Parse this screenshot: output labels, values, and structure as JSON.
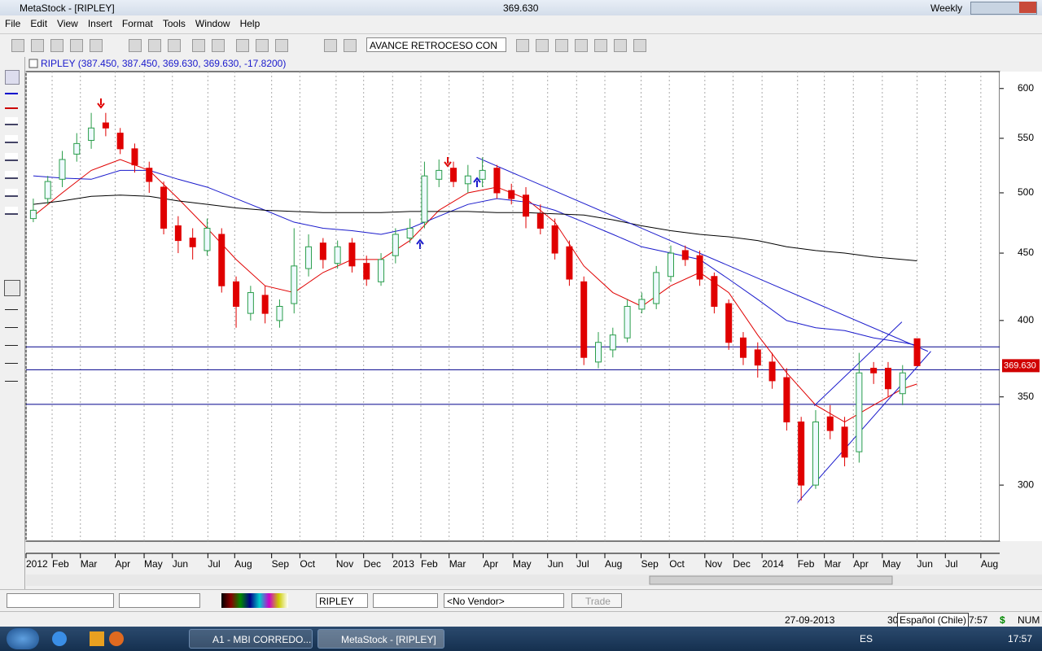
{
  "window": {
    "title": "MetaStock - [RIPLEY]",
    "value": "369.630",
    "period": "Weekly"
  },
  "menu": [
    "File",
    "Edit",
    "View",
    "Insert",
    "Format",
    "Tools",
    "Window",
    "Help"
  ],
  "toolbar": {
    "study": "AVANCE RETROCESO CON"
  },
  "chart_data": {
    "type": "candlestick",
    "title": "RIPLEY (387.450, 387.450, 369.630, 369.630, -17.8200)",
    "x": [
      1,
      3,
      5,
      7,
      9,
      11,
      13,
      15,
      17,
      19,
      21,
      23,
      25,
      27,
      29,
      31,
      33,
      35,
      37,
      39,
      41,
      43,
      45,
      47,
      49,
      51,
      53,
      55,
      57,
      59,
      61,
      63,
      65,
      67,
      69,
      71,
      73,
      75,
      77,
      79,
      81,
      83,
      85,
      87,
      89,
      91,
      93,
      95,
      97,
      99,
      101,
      103,
      105,
      107,
      109,
      111,
      113,
      115,
      117,
      119,
      121,
      123
    ],
    "open": [
      478,
      495,
      512,
      535,
      548,
      565,
      555,
      540,
      522,
      505,
      472,
      462,
      452,
      465,
      428,
      405,
      418,
      400,
      412,
      438,
      458,
      442,
      458,
      442,
      428,
      448,
      462,
      475,
      512,
      522,
      508,
      512,
      522,
      502,
      498,
      482,
      472,
      455,
      428,
      372,
      380,
      388,
      408,
      412,
      432,
      452,
      448,
      432,
      412,
      388,
      380,
      372,
      362,
      335,
      300,
      338,
      332,
      318,
      368,
      368,
      352,
      387.45
    ],
    "high": [
      495,
      515,
      538,
      555,
      575,
      575,
      560,
      545,
      528,
      510,
      480,
      470,
      478,
      470,
      432,
      425,
      425,
      415,
      470,
      465,
      462,
      460,
      462,
      448,
      450,
      470,
      478,
      528,
      530,
      528,
      525,
      532,
      525,
      508,
      505,
      490,
      478,
      460,
      432,
      392,
      395,
      415,
      420,
      440,
      456,
      456,
      452,
      435,
      415,
      392,
      385,
      378,
      368,
      338,
      342,
      345,
      338,
      378,
      372,
      372,
      370,
      387.45
    ],
    "low": [
      475,
      490,
      505,
      528,
      540,
      552,
      535,
      518,
      500,
      465,
      450,
      445,
      448,
      420,
      395,
      400,
      398,
      395,
      405,
      432,
      438,
      438,
      435,
      425,
      425,
      442,
      458,
      470,
      505,
      505,
      500,
      505,
      495,
      490,
      470,
      465,
      445,
      425,
      370,
      368,
      375,
      385,
      405,
      408,
      428,
      440,
      425,
      405,
      380,
      370,
      362,
      355,
      330,
      292,
      298,
      325,
      310,
      312,
      358,
      350,
      345,
      369.63
    ],
    "close": [
      485,
      510,
      530,
      545,
      560,
      560,
      540,
      525,
      510,
      470,
      460,
      455,
      470,
      425,
      410,
      420,
      405,
      410,
      440,
      455,
      445,
      455,
      440,
      430,
      445,
      465,
      470,
      515,
      520,
      510,
      515,
      520,
      500,
      495,
      480,
      470,
      450,
      430,
      375,
      385,
      390,
      410,
      415,
      435,
      450,
      445,
      430,
      410,
      385,
      375,
      370,
      360,
      335,
      300,
      335,
      330,
      315,
      365,
      365,
      355,
      365,
      369.63
    ],
    "up_color": "#2a9d4a",
    "down_color": "#e00000",
    "series": [
      {
        "color": "#e00000",
        "x": [
          1,
          5,
          9,
          13,
          17,
          21,
          25,
          29,
          33,
          37,
          41,
          45,
          49,
          53,
          57,
          61,
          65,
          69,
          73,
          77,
          81,
          85,
          89,
          93,
          97,
          101,
          105,
          109,
          113,
          117,
          121,
          123
        ],
        "values": [
          480,
          500,
          520,
          530,
          520,
          495,
          470,
          445,
          425,
          420,
          435,
          445,
          445,
          460,
          485,
          500,
          505,
          495,
          475,
          440,
          420,
          410,
          425,
          435,
          420,
          390,
          365,
          345,
          335,
          345,
          355,
          358
        ]
      },
      {
        "color": "#1a1acc",
        "x": [
          1,
          5,
          9,
          13,
          17,
          21,
          25,
          29,
          33,
          37,
          41,
          45,
          49,
          53,
          57,
          61,
          65,
          69,
          73,
          77,
          81,
          85,
          89,
          93,
          97,
          101,
          105,
          109,
          113,
          117,
          121,
          123
        ],
        "values": [
          515,
          513,
          512,
          520,
          520,
          512,
          505,
          495,
          485,
          475,
          470,
          468,
          465,
          470,
          480,
          490,
          495,
          492,
          485,
          475,
          465,
          455,
          450,
          445,
          430,
          415,
          400,
          395,
          393,
          388,
          385,
          383
        ]
      },
      {
        "color": "#000000",
        "x": [
          1,
          5,
          9,
          13,
          17,
          21,
          25,
          29,
          33,
          37,
          41,
          45,
          49,
          53,
          57,
          61,
          65,
          69,
          73,
          77,
          81,
          85,
          89,
          93,
          97,
          101,
          105,
          109,
          113,
          117,
          121,
          123
        ],
        "values": [
          490,
          493,
          497,
          498,
          497,
          493,
          490,
          487,
          485,
          484,
          483,
          483,
          483,
          484,
          484,
          484,
          483,
          483,
          482,
          481,
          477,
          472,
          468,
          465,
          463,
          460,
          455,
          452,
          450,
          447,
          445,
          444
        ]
      }
    ],
    "hlines": [
      382,
      367,
      345.5
    ],
    "hline_color": "#00008b",
    "trendlines": [
      {
        "x": [
          62.2,
          124.5
        ],
        "values": [
          532,
          379
        ]
      },
      {
        "x": [
          106.5,
          124.9
        ],
        "values": [
          291,
          379
        ]
      },
      {
        "x": [
          108.8,
          120.9
        ],
        "values": [
          344.6,
          399
        ]
      }
    ],
    "trend_color": "#1a1acc",
    "last_price": {
      "value": 369.63,
      "label": "369.630"
    },
    "log_scale": true,
    "grid": true,
    "xlim": [
      0,
      134.4
    ],
    "ylim": [
      272,
      618
    ],
    "yticks": [
      300,
      350,
      400,
      450,
      500,
      550,
      600
    ],
    "xticks": [
      {
        "value": 0,
        "label": "2012"
      },
      {
        "value": 3.6,
        "label": "Feb"
      },
      {
        "value": 7.5,
        "label": "Mar"
      },
      {
        "value": 12.3,
        "label": "Apr"
      },
      {
        "value": 16.3,
        "label": "May"
      },
      {
        "value": 20.2,
        "label": "Jun"
      },
      {
        "value": 25.1,
        "label": "Jul"
      },
      {
        "value": 28.8,
        "label": "Aug"
      },
      {
        "value": 33.9,
        "label": "Sep"
      },
      {
        "value": 37.8,
        "label": "Oct"
      },
      {
        "value": 42.8,
        "label": "Nov"
      },
      {
        "value": 46.6,
        "label": "Dec"
      },
      {
        "value": 50.6,
        "label": "2013"
      },
      {
        "value": 54.5,
        "label": "Feb"
      },
      {
        "value": 58.4,
        "label": "Mar"
      },
      {
        "value": 63.1,
        "label": "Apr"
      },
      {
        "value": 67.2,
        "label": "May"
      },
      {
        "value": 72,
        "label": "Jun"
      },
      {
        "value": 76,
        "label": "Jul"
      },
      {
        "value": 79.9,
        "label": "Aug"
      },
      {
        "value": 84.9,
        "label": "Sep"
      },
      {
        "value": 88.8,
        "label": "Oct"
      },
      {
        "value": 93.7,
        "label": "Nov"
      },
      {
        "value": 97.6,
        "label": "Dec"
      },
      {
        "value": 101.6,
        "label": "2014"
      },
      {
        "value": 106.5,
        "label": "Feb"
      },
      {
        "value": 110.2,
        "label": "Mar"
      },
      {
        "value": 114.2,
        "label": "Apr"
      },
      {
        "value": 118.2,
        "label": "May"
      },
      {
        "value": 123,
        "label": "Jun"
      },
      {
        "value": 126.9,
        "label": "Jul"
      },
      {
        "value": 131.8,
        "label": "Aug"
      }
    ]
  },
  "bottom": {
    "symbol": "RIPLEY",
    "vendor": "<No Vendor>",
    "trade": "Trade"
  },
  "status": {
    "date": "27-09-2013",
    "day": "30",
    "language": "Español (Chile)",
    "time": "7:57",
    "currency": "$",
    "num": "NUM"
  },
  "taskbar": {
    "task1": "A1 - MBI CORREDO...",
    "task2": "MetaStock - [RIPLEY]",
    "lang": "ES",
    "clock": "17:57"
  }
}
